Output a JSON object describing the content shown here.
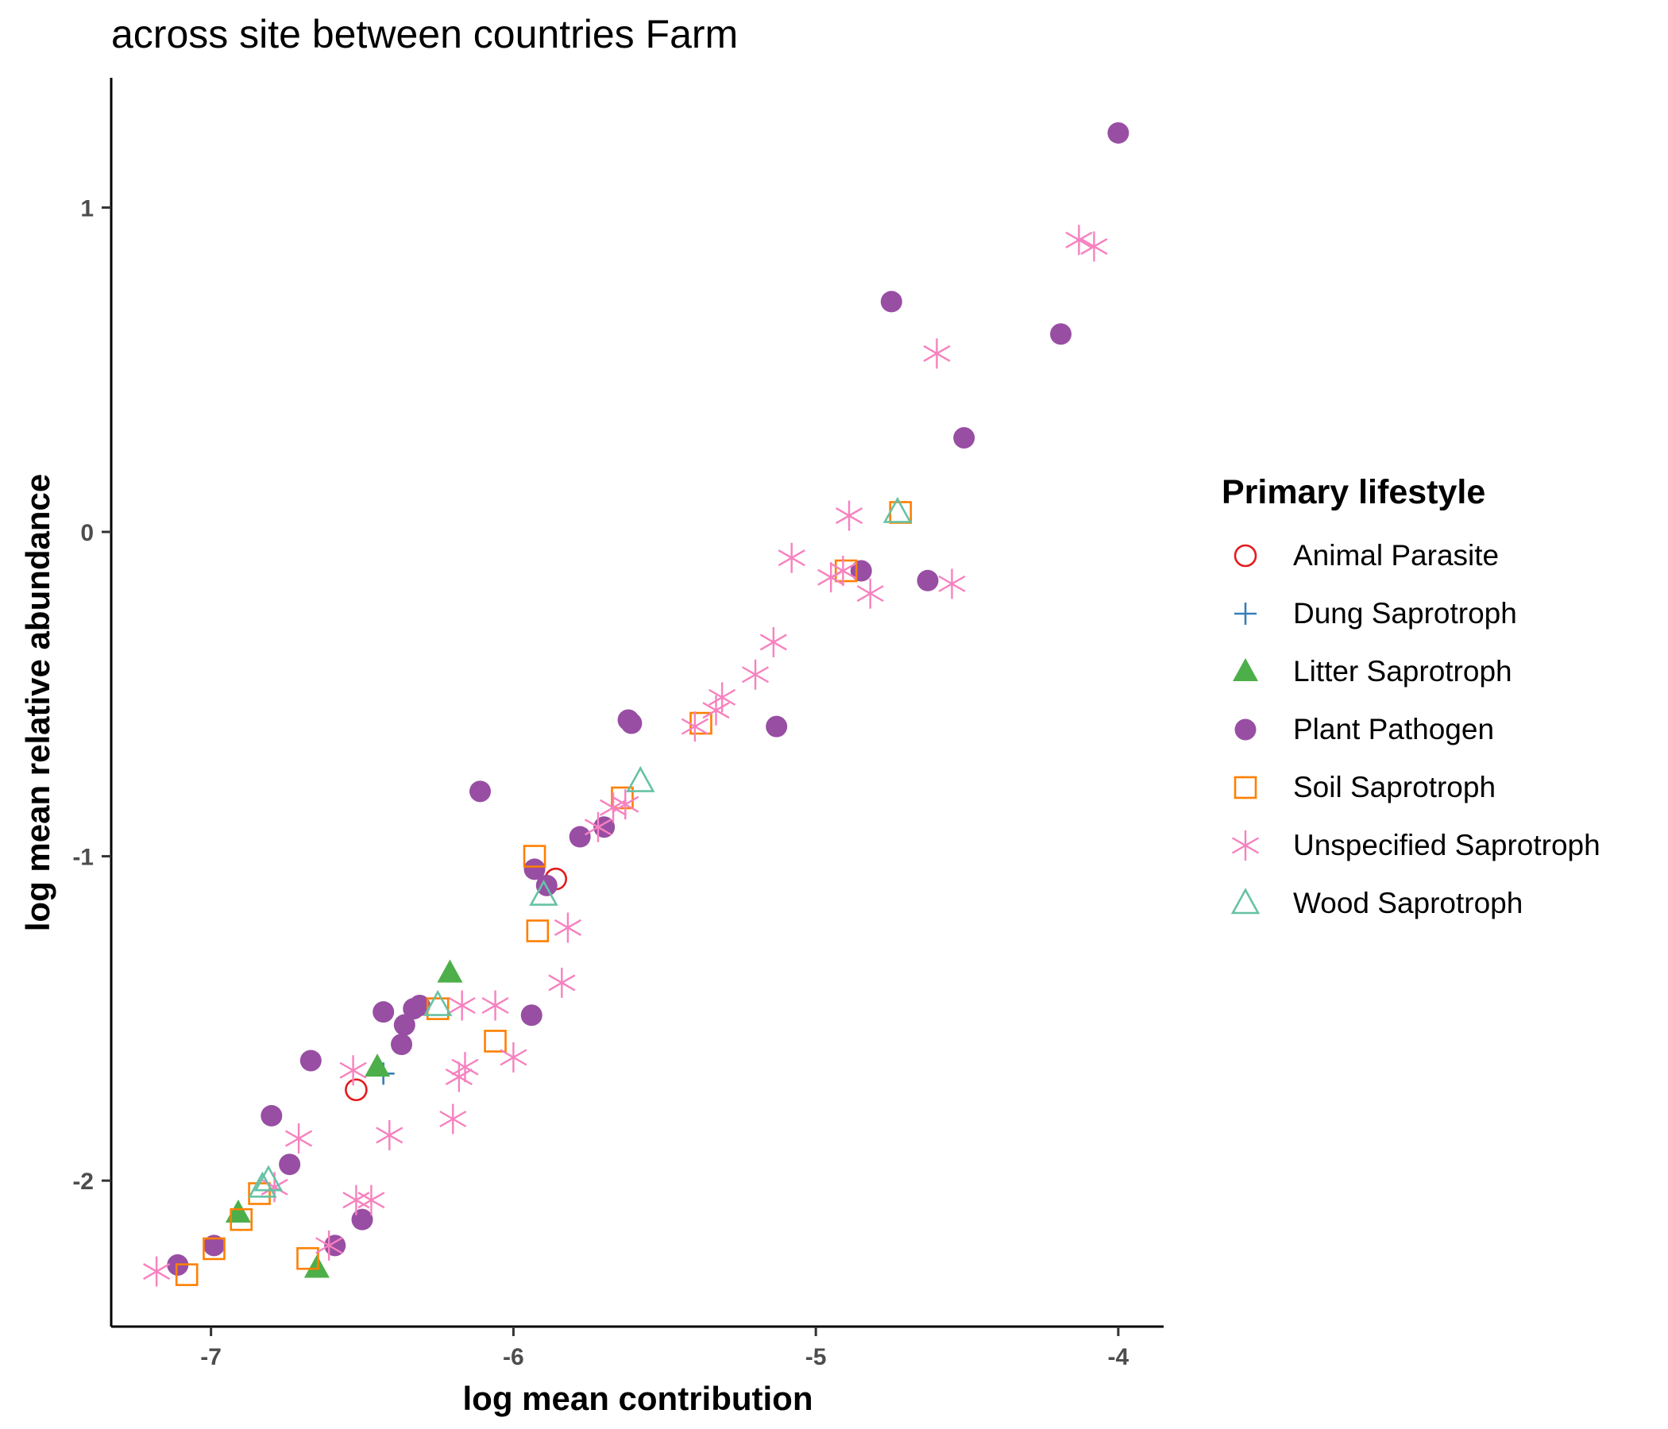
{
  "chart_data": {
    "type": "scatter",
    "title": "across site between countries Farm",
    "xlabel": "log mean contribution",
    "ylabel": "log mean relative abundance",
    "xlim": [
      -7.33,
      -3.85
    ],
    "ylim": [
      -2.45,
      1.4
    ],
    "xticks": [
      -7,
      -6,
      -5,
      -4
    ],
    "yticks": [
      -2,
      -1,
      0,
      1
    ],
    "xtick_labels": [
      "-7",
      "-6",
      "-5",
      "-4"
    ],
    "ytick_labels": [
      "-2",
      "-1",
      "0",
      "1"
    ],
    "grid": false,
    "legend": {
      "title": "Primary lifestyle",
      "position": "right"
    },
    "series": [
      {
        "name": "Animal Parasite",
        "color": "#e41a1c",
        "shape": "open-circle",
        "points": [
          [
            -6.52,
            -1.72
          ],
          [
            -5.86,
            -1.07
          ]
        ]
      },
      {
        "name": "Dung Saprotroph",
        "color": "#377eb8",
        "shape": "plus",
        "points": [
          [
            -6.43,
            -1.67
          ]
        ]
      },
      {
        "name": "Litter Saprotroph",
        "color": "#4daf4a",
        "shape": "filled-triangle",
        "points": [
          [
            -6.21,
            -1.36
          ],
          [
            -6.45,
            -1.65
          ],
          [
            -6.91,
            -2.1
          ],
          [
            -6.65,
            -2.27
          ]
        ]
      },
      {
        "name": "Plant Pathogen",
        "color": "#984ea3",
        "shape": "filled-circle",
        "points": [
          [
            -4.0,
            1.23
          ],
          [
            -4.19,
            0.61
          ],
          [
            -4.75,
            0.71
          ],
          [
            -4.51,
            0.29
          ],
          [
            -4.85,
            -0.12
          ],
          [
            -4.63,
            -0.15
          ],
          [
            -5.62,
            -0.58
          ],
          [
            -5.61,
            -0.59
          ],
          [
            -5.13,
            -0.6
          ],
          [
            -6.11,
            -0.8
          ],
          [
            -5.7,
            -0.91
          ],
          [
            -5.78,
            -0.94
          ],
          [
            -5.93,
            -1.04
          ],
          [
            -5.89,
            -1.09
          ],
          [
            -5.94,
            -1.49
          ],
          [
            -6.43,
            -1.48
          ],
          [
            -6.31,
            -1.46
          ],
          [
            -6.33,
            -1.47
          ],
          [
            -6.36,
            -1.52
          ],
          [
            -6.37,
            -1.58
          ],
          [
            -6.67,
            -1.63
          ],
          [
            -6.8,
            -1.8
          ],
          [
            -6.74,
            -1.95
          ],
          [
            -6.5,
            -2.12
          ],
          [
            -6.59,
            -2.2
          ],
          [
            -6.99,
            -2.2
          ],
          [
            -7.11,
            -2.26
          ]
        ]
      },
      {
        "name": "Soil Saprotroph",
        "color": "#ff7f00",
        "shape": "open-square",
        "points": [
          [
            -4.72,
            0.06
          ],
          [
            -4.9,
            -0.12
          ],
          [
            -5.38,
            -0.59
          ],
          [
            -5.64,
            -0.82
          ],
          [
            -5.93,
            -1.0
          ],
          [
            -5.92,
            -1.23
          ],
          [
            -6.25,
            -1.47
          ],
          [
            -6.06,
            -1.57
          ],
          [
            -6.84,
            -2.04
          ],
          [
            -6.9,
            -2.12
          ],
          [
            -6.99,
            -2.21
          ],
          [
            -6.68,
            -2.24
          ],
          [
            -7.08,
            -2.29
          ]
        ]
      },
      {
        "name": "Unspecified Saprotroph",
        "color": "#f781bf",
        "shape": "asterisk",
        "points": [
          [
            -4.13,
            0.9
          ],
          [
            -4.08,
            0.88
          ],
          [
            -4.6,
            0.55
          ],
          [
            -4.89,
            0.05
          ],
          [
            -5.08,
            -0.08
          ],
          [
            -4.95,
            -0.14
          ],
          [
            -4.91,
            -0.12
          ],
          [
            -4.82,
            -0.19
          ],
          [
            -4.55,
            -0.16
          ],
          [
            -5.14,
            -0.34
          ],
          [
            -5.2,
            -0.44
          ],
          [
            -5.31,
            -0.51
          ],
          [
            -5.33,
            -0.55
          ],
          [
            -5.4,
            -0.6
          ],
          [
            -5.67,
            -0.85
          ],
          [
            -5.63,
            -0.84
          ],
          [
            -5.72,
            -0.91
          ],
          [
            -5.82,
            -1.22
          ],
          [
            -5.84,
            -1.39
          ],
          [
            -6.17,
            -1.46
          ],
          [
            -6.06,
            -1.46
          ],
          [
            -6.0,
            -1.62
          ],
          [
            -6.16,
            -1.65
          ],
          [
            -6.18,
            -1.68
          ],
          [
            -6.2,
            -1.81
          ],
          [
            -6.41,
            -1.86
          ],
          [
            -6.71,
            -1.87
          ],
          [
            -6.53,
            -1.66
          ],
          [
            -6.52,
            -2.06
          ],
          [
            -6.47,
            -2.06
          ],
          [
            -6.79,
            -2.02
          ],
          [
            -6.61,
            -2.2
          ],
          [
            -7.18,
            -2.28
          ]
        ]
      },
      {
        "name": "Wood Saprotroph",
        "color": "#66c2a5",
        "shape": "open-triangle",
        "points": [
          [
            -4.73,
            0.06
          ],
          [
            -5.58,
            -0.77
          ],
          [
            -5.9,
            -1.12
          ],
          [
            -6.25,
            -1.46
          ],
          [
            -6.81,
            -2.0
          ],
          [
            -6.83,
            -2.02
          ]
        ]
      }
    ]
  }
}
